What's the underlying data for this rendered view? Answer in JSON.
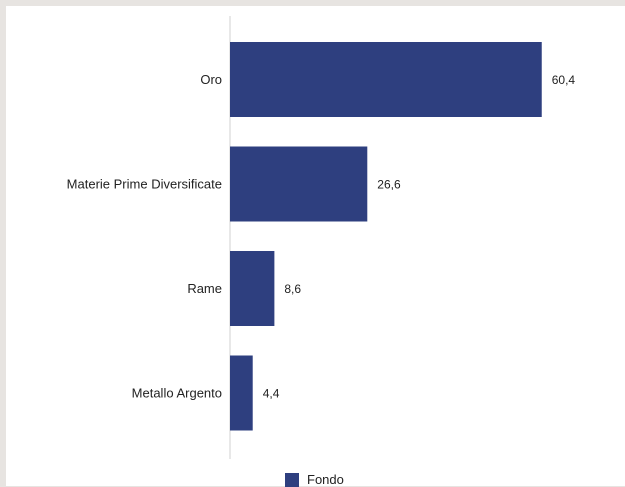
{
  "chart_data": {
    "type": "bar",
    "orientation": "horizontal",
    "categories": [
      "Oro",
      "Materie Prime Diversificate",
      "Rame",
      "Metallo Argento"
    ],
    "series": [
      {
        "name": "Fondo",
        "values": [
          60.4,
          26.6,
          8.6,
          4.4
        ],
        "color": "#2e3f7f"
      }
    ],
    "value_labels": [
      "60,4",
      "26,6",
      "8,6",
      "4,4"
    ],
    "xlim": [
      0,
      62
    ],
    "grid": false,
    "legend_position": "bottom"
  }
}
